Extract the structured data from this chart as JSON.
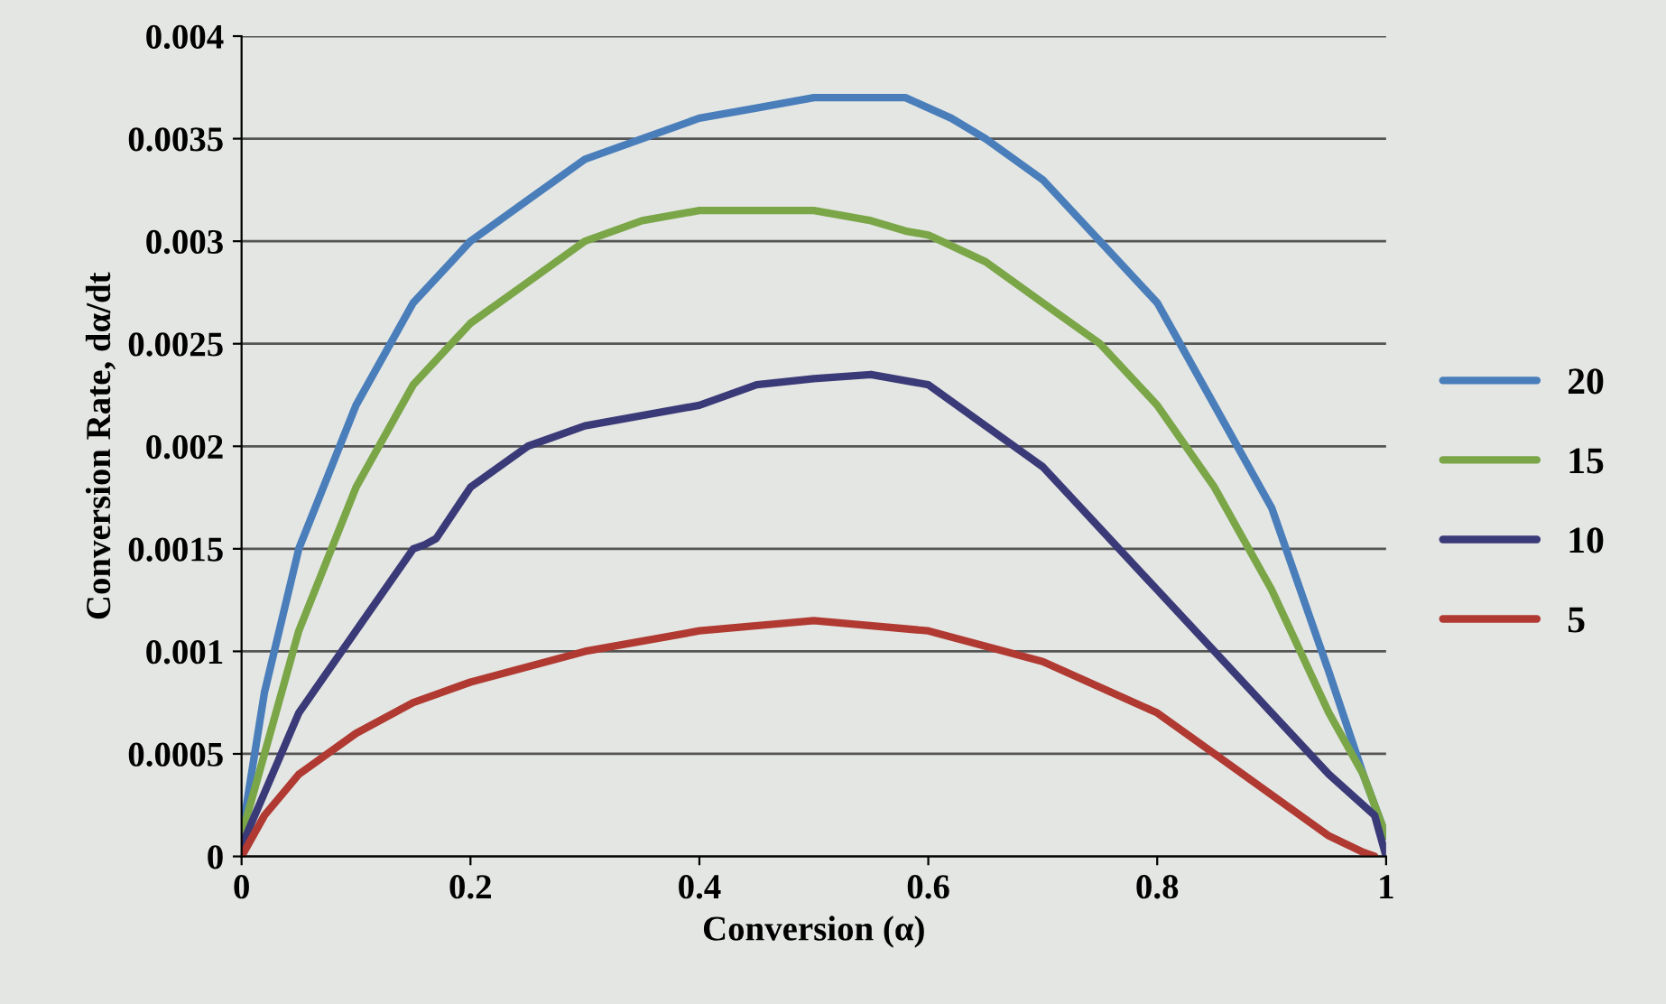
{
  "chart_data": {
    "type": "line",
    "xlabel": "Conversion (α)",
    "ylabel": "Conversion Rate, dα/dt",
    "xlim": [
      0,
      1
    ],
    "xticks": [
      0,
      0.2,
      0.4,
      0.6,
      0.8,
      1
    ],
    "ylim": [
      0,
      0.004
    ],
    "yticks": [
      0,
      0.0005,
      0.001,
      0.0015,
      0.002,
      0.0025,
      0.003,
      0.0035,
      0.004
    ],
    "grid": "y",
    "legend": "right",
    "marker": "none",
    "line_style": "solid",
    "series": [
      {
        "name": "20",
        "color": "#4a7ebb",
        "x": [
          0,
          0.02,
          0.05,
          0.1,
          0.15,
          0.2,
          0.25,
          0.3,
          0.35,
          0.4,
          0.45,
          0.5,
          0.55,
          0.58,
          0.62,
          0.65,
          0.7,
          0.75,
          0.8,
          0.85,
          0.9,
          0.95,
          0.98,
          1
        ],
        "values": [
          0.0001,
          0.0008,
          0.0015,
          0.0022,
          0.0027,
          0.003,
          0.0032,
          0.0034,
          0.0035,
          0.0036,
          0.00365,
          0.0037,
          0.0037,
          0.0037,
          0.0036,
          0.0035,
          0.0033,
          0.003,
          0.0027,
          0.0022,
          0.0017,
          0.0009,
          0.0004,
          0.0001
        ]
      },
      {
        "name": "15",
        "color": "#7aa648",
        "x": [
          0,
          0.05,
          0.1,
          0.15,
          0.2,
          0.25,
          0.3,
          0.35,
          0.4,
          0.45,
          0.5,
          0.55,
          0.58,
          0.6,
          0.65,
          0.7,
          0.75,
          0.8,
          0.85,
          0.9,
          0.95,
          0.98,
          1
        ],
        "values": [
          0.0001,
          0.0011,
          0.0018,
          0.0023,
          0.0026,
          0.0028,
          0.003,
          0.0031,
          0.00315,
          0.00315,
          0.00315,
          0.0031,
          0.00305,
          0.00303,
          0.0029,
          0.0027,
          0.0025,
          0.0022,
          0.0018,
          0.0013,
          0.0007,
          0.0004,
          0.0001
        ]
      },
      {
        "name": "10",
        "color": "#3b3a78",
        "x": [
          0,
          0.05,
          0.1,
          0.15,
          0.16,
          0.17,
          0.2,
          0.25,
          0.3,
          0.4,
          0.45,
          0.5,
          0.55,
          0.6,
          0.65,
          0.7,
          0.75,
          0.8,
          0.85,
          0.9,
          0.95,
          0.97,
          0.99,
          1
        ],
        "values": [
          5e-05,
          0.0007,
          0.0011,
          0.0015,
          0.00152,
          0.00155,
          0.0018,
          0.002,
          0.0021,
          0.0022,
          0.0023,
          0.00233,
          0.00235,
          0.0023,
          0.0021,
          0.0019,
          0.0016,
          0.0013,
          0.001,
          0.0007,
          0.0004,
          0.0003,
          0.0002,
          0
        ]
      },
      {
        "name": "5",
        "color": "#b03a32",
        "x": [
          0,
          0.02,
          0.05,
          0.1,
          0.15,
          0.2,
          0.3,
          0.4,
          0.5,
          0.6,
          0.7,
          0.8,
          0.85,
          0.9,
          0.95,
          0.98,
          0.99
        ],
        "values": [
          0,
          0.0002,
          0.0004,
          0.0006,
          0.00075,
          0.00085,
          0.001,
          0.0011,
          0.00115,
          0.0011,
          0.00095,
          0.0007,
          0.0005,
          0.0003,
          0.0001,
          2e-05,
          0
        ]
      }
    ]
  }
}
